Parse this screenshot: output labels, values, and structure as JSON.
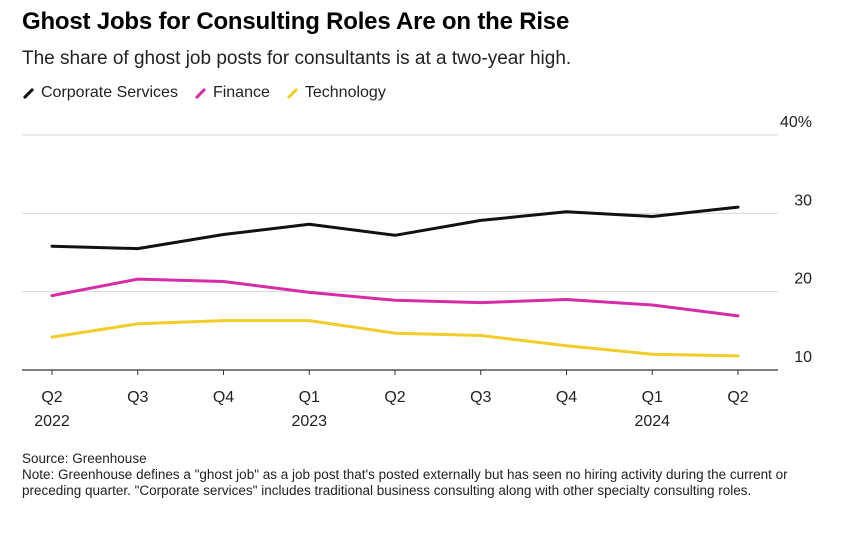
{
  "chart_data": {
    "type": "line",
    "title": "Ghost Jobs for Consulting Roles Are on the Rise",
    "subtitle": "The share of ghost job posts for consultants is at a two-year high.",
    "categories": [
      "Q2",
      "Q3",
      "Q4",
      "Q1",
      "Q2",
      "Q3",
      "Q4",
      "Q1",
      "Q2"
    ],
    "year_labels": [
      {
        "index": 0,
        "label": "2022"
      },
      {
        "index": 3,
        "label": "2023"
      },
      {
        "index": 7,
        "label": "2024"
      }
    ],
    "ylim": [
      10,
      40
    ],
    "yticks": [
      10,
      20,
      30,
      40
    ],
    "ytick_labels": [
      "10",
      "20",
      "30",
      "40%"
    ],
    "series": [
      {
        "name": "Corporate Services",
        "color": "#111111",
        "values": [
          25.8,
          25.5,
          27.3,
          28.6,
          27.2,
          29.1,
          30.2,
          29.6,
          30.8
        ]
      },
      {
        "name": "Finance",
        "color": "#d62ca8",
        "values": [
          19.5,
          21.6,
          21.3,
          19.9,
          18.9,
          18.6,
          19.0,
          18.3,
          16.9
        ]
      },
      {
        "name": "Technology",
        "color": "#f2cc29",
        "values": [
          14.2,
          15.9,
          16.3,
          16.3,
          14.7,
          14.4,
          13.1,
          12.0,
          11.8
        ]
      }
    ]
  },
  "source": "Source: Greenhouse",
  "note": "Note: Greenhouse defines a \"ghost job\" as a job post that's posted externally but has seen no hiring activity during the current or preceding quarter. \"Corporate services\" includes traditional business consulting along with other specialty consulting roles."
}
